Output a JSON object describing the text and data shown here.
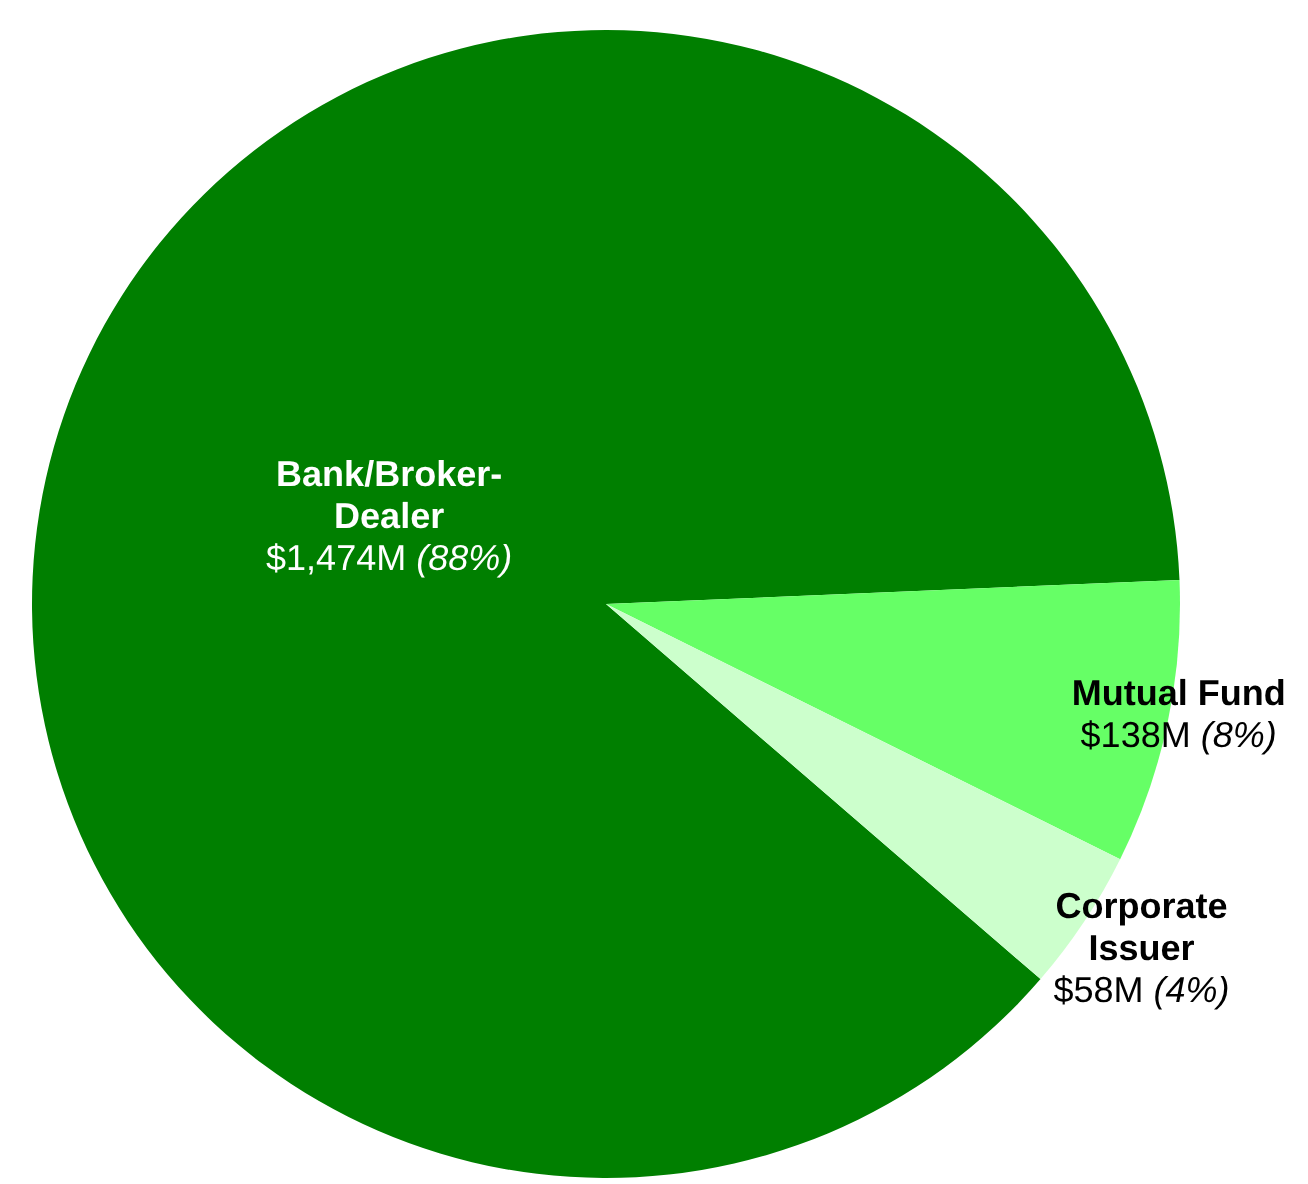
{
  "chart_data": {
    "type": "pie",
    "categories": [
      "Bank/Broker-Dealer",
      "Mutual Fund",
      "Corporate Issuer"
    ],
    "values": [
      88,
      8,
      4
    ],
    "colors": [
      "#007f00",
      "#66ff66",
      "#ccffcc"
    ],
    "value_labels": [
      "$1,474M (88%)",
      "$138M (8%)",
      "$58M (4%)"
    ],
    "legend": false
  }
}
